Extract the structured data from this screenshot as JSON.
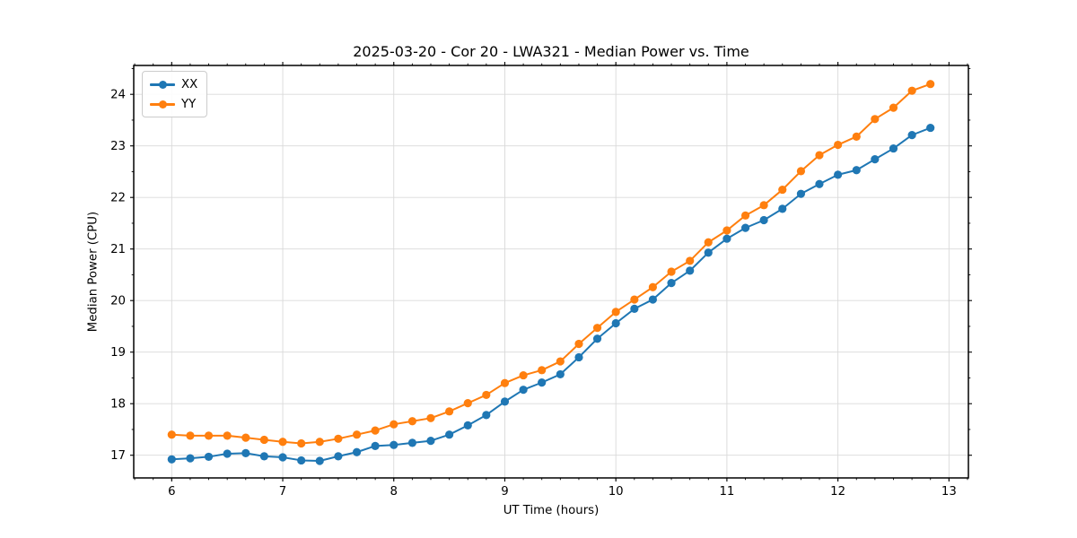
{
  "chart_data": {
    "type": "line",
    "title": "2025-03-20 - Cor 20 - LWA321 - Median Power vs. Time",
    "xlabel": "UT Time (hours)",
    "ylabel": "Median Power (CPU)",
    "xlim": [
      5.658,
      13.175
    ],
    "ylim": [
      16.56,
      24.56
    ],
    "x_major_ticks": [
      6,
      7,
      8,
      9,
      10,
      11,
      12,
      13
    ],
    "y_major_ticks": [
      17,
      18,
      19,
      20,
      21,
      22,
      23,
      24
    ],
    "x_minor_step": 0.1666667,
    "y_minor_step": 0.5,
    "grid": true,
    "legend_position": "upper-left",
    "background_color": "#ffffff",
    "grid_color": "#d9d9d9",
    "spine_color": "#000000",
    "x": [
      6.0,
      6.167,
      6.333,
      6.5,
      6.667,
      6.833,
      7.0,
      7.167,
      7.333,
      7.5,
      7.667,
      7.833,
      8.0,
      8.167,
      8.333,
      8.5,
      8.667,
      8.833,
      9.0,
      9.167,
      9.333,
      9.5,
      9.667,
      9.833,
      10.0,
      10.167,
      10.333,
      10.5,
      10.667,
      10.833,
      11.0,
      11.167,
      11.333,
      11.5,
      11.667,
      11.833,
      12.0,
      12.167,
      12.333,
      12.5,
      12.667,
      12.833
    ],
    "series": [
      {
        "name": "XX",
        "color": "#1f77b4",
        "values": [
          16.92,
          16.94,
          16.97,
          17.03,
          17.04,
          16.98,
          16.96,
          16.9,
          16.89,
          16.98,
          17.06,
          17.18,
          17.2,
          17.24,
          17.28,
          17.4,
          17.58,
          17.78,
          18.04,
          18.27,
          18.41,
          18.57,
          18.9,
          19.26,
          19.56,
          19.84,
          20.02,
          20.34,
          20.58,
          20.93,
          21.2,
          21.41,
          21.56,
          21.78,
          22.07,
          22.26,
          22.44,
          22.53,
          22.74,
          22.95,
          23.21,
          23.35
        ]
      },
      {
        "name": "YY",
        "color": "#ff7f0e",
        "values": [
          17.4,
          17.38,
          17.38,
          17.38,
          17.34,
          17.3,
          17.26,
          17.23,
          17.26,
          17.32,
          17.4,
          17.48,
          17.6,
          17.66,
          17.72,
          17.85,
          18.01,
          18.17,
          18.4,
          18.55,
          18.65,
          18.82,
          19.16,
          19.47,
          19.78,
          20.02,
          20.26,
          20.56,
          20.77,
          21.13,
          21.36,
          21.65,
          21.85,
          22.15,
          22.51,
          22.82,
          23.02,
          23.18,
          23.52,
          23.74,
          24.07,
          24.2
        ]
      }
    ]
  }
}
